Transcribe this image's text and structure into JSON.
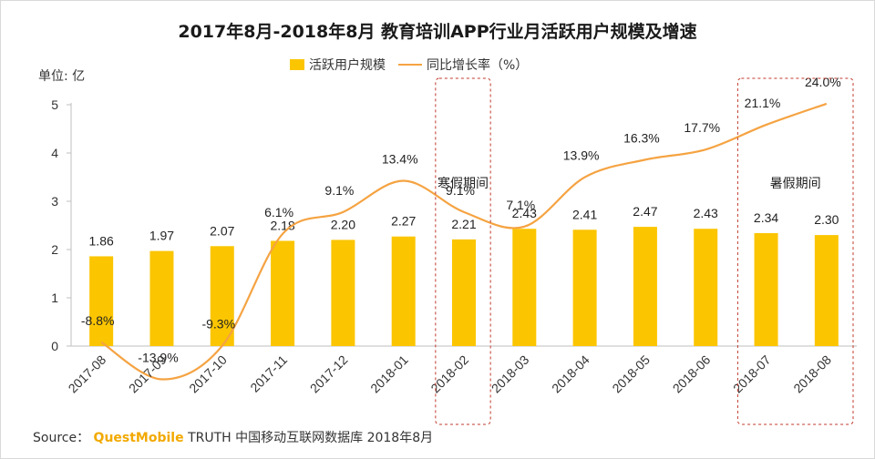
{
  "title": "2017年8月-2018年8月 教育培训APP行业月活跃用户规模及增速",
  "unit_label": "单位: 亿",
  "legend": {
    "bar_label": "活跃用户规模",
    "line_label": "同比增长率（%）"
  },
  "annotations": {
    "winter": "寒假期间",
    "summer": "暑假期间"
  },
  "source": {
    "prefix": "Source：",
    "brand": "QuestMobile",
    "suffix": "TRUTH 中国移动互联网数据库 2018年8月"
  },
  "colors": {
    "bar": "#fbc500",
    "line": "#f5a342",
    "highlight_box": "#c0392b",
    "axis": "#bfbfbf"
  },
  "chart_data": {
    "type": "bar",
    "categories": [
      "2017-08",
      "2017-09",
      "2017-10",
      "2017-11",
      "2017-12",
      "2018-01",
      "2018-02",
      "2018-03",
      "2018-04",
      "2018-05",
      "2018-06",
      "2018-07",
      "2018-08"
    ],
    "series": [
      {
        "name": "活跃用户规模",
        "type": "bar",
        "values": [
          1.86,
          1.97,
          2.07,
          2.18,
          2.2,
          2.27,
          2.21,
          2.43,
          2.41,
          2.47,
          2.43,
          2.34,
          2.3
        ],
        "labels": [
          "1.86",
          "1.97",
          "2.07",
          "2.18",
          "2.20",
          "2.27",
          "2.21",
          "2.43",
          "2.41",
          "2.47",
          "2.43",
          "2.34",
          "2.30"
        ]
      },
      {
        "name": "同比增长率（%）",
        "type": "line",
        "values": [
          -8.8,
          -13.9,
          -9.3,
          6.1,
          9.1,
          13.4,
          9.1,
          7.1,
          13.9,
          16.3,
          17.7,
          21.1,
          24.0
        ],
        "labels": [
          "-8.8%",
          "-13.9%",
          "-9.3%",
          "6.1%",
          "9.1%",
          "13.4%",
          "9.1%",
          "7.1%",
          "13.9%",
          "16.3%",
          "17.7%",
          "21.1%",
          "24.0%"
        ]
      }
    ],
    "ylim": [
      0,
      5
    ],
    "yticks": [
      "0",
      "1",
      "2",
      "3",
      "4",
      "5"
    ],
    "ylabel": "单位: 亿",
    "line_range": [
      -30,
      30
    ],
    "highlight_categories": [
      [
        "2018-02"
      ],
      [
        "2018-07",
        "2018-08"
      ]
    ],
    "legend_position": "top-center",
    "grid": false
  }
}
